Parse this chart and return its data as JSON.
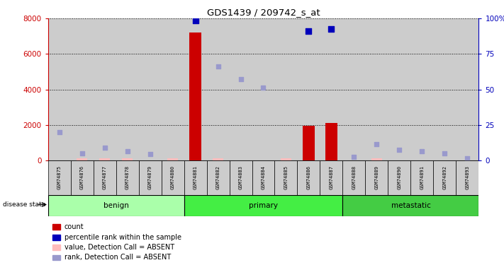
{
  "title": "GDS1439 / 209742_s_at",
  "samples": [
    "GSM74875",
    "GSM74876",
    "GSM74877",
    "GSM74878",
    "GSM74879",
    "GSM74880",
    "GSM74881",
    "GSM74882",
    "GSM74883",
    "GSM74884",
    "GSM74885",
    "GSM74886",
    "GSM74887",
    "GSM74888",
    "GSM74889",
    "GSM74890",
    "GSM74891",
    "GSM74892",
    "GSM74893"
  ],
  "count_values": [
    0,
    0,
    0,
    0,
    0,
    0,
    7200,
    0,
    0,
    0,
    0,
    1950,
    2100,
    0,
    0,
    0,
    0,
    0,
    0
  ],
  "absent_value": [
    null,
    100,
    100,
    100,
    null,
    100,
    null,
    100,
    null,
    null,
    100,
    null,
    null,
    null,
    100,
    null,
    null,
    null,
    null
  ],
  "absent_rank": [
    1600,
    400,
    700,
    500,
    350,
    null,
    null,
    5300,
    4600,
    4100,
    null,
    null,
    null,
    200,
    900,
    600,
    500,
    400,
    100
  ],
  "blue_rank_present": [
    null,
    null,
    null,
    null,
    null,
    null,
    7900,
    null,
    null,
    null,
    null,
    7300,
    7400,
    null,
    null,
    null,
    null,
    null,
    null
  ],
  "blue_rank_absent": [
    null,
    null,
    null,
    null,
    null,
    null,
    null,
    null,
    null,
    null,
    null,
    null,
    null,
    null,
    null,
    null,
    null,
    null,
    null
  ],
  "disease_groups": [
    {
      "label": "benign",
      "start": 0,
      "end": 5
    },
    {
      "label": "primary",
      "start": 6,
      "end": 12
    },
    {
      "label": "metastatic",
      "start": 13,
      "end": 18
    }
  ],
  "benign_color": "#AAFFAA",
  "primary_color": "#44EE44",
  "metastatic_color": "#44CC44",
  "ylim_left": [
    0,
    8000
  ],
  "ylim_right": [
    0,
    100
  ],
  "yticks_left": [
    0,
    2000,
    4000,
    6000,
    8000
  ],
  "yticks_right": [
    0,
    25,
    50,
    75,
    100
  ],
  "bar_color": "#CC0000",
  "rank_color_present": "#0000BB",
  "absent_rank_color": "#9999CC",
  "absent_val_color": "#FFBBBB",
  "sample_bg_color": "#CCCCCC",
  "legend_items": [
    {
      "color": "#CC0000",
      "label": "count"
    },
    {
      "color": "#0000BB",
      "label": "percentile rank within the sample"
    },
    {
      "color": "#FFBBBB",
      "label": "value, Detection Call = ABSENT"
    },
    {
      "color": "#9999CC",
      "label": "rank, Detection Call = ABSENT"
    }
  ]
}
